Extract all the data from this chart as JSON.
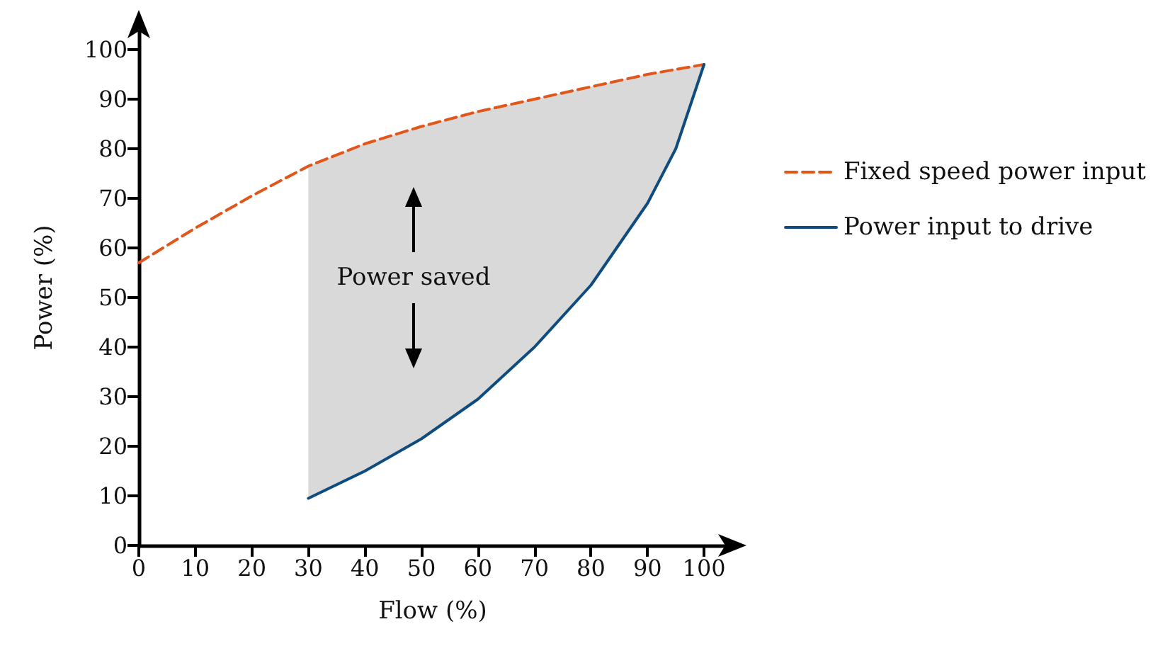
{
  "chart_data": {
    "type": "line",
    "xlabel": "Flow (%)",
    "ylabel": "Power (%)",
    "x": [
      0,
      10,
      20,
      30,
      40,
      50,
      60,
      70,
      80,
      90,
      95,
      100
    ],
    "series": [
      {
        "name": "Fixed speed power input",
        "color": "#e0561b",
        "line_style": "dashed",
        "values": [
          57,
          64,
          70.5,
          76.5,
          81,
          84.5,
          87.5,
          90,
          92.5,
          95,
          96,
          97
        ],
        "lower": [
          null,
          null,
          null,
          9.5,
          15,
          21.5,
          29.5,
          40,
          52.5,
          69,
          80,
          97
        ],
        "upper": [
          null,
          null,
          null,
          76.5,
          81,
          84.5,
          87.5,
          90,
          92.5,
          95,
          96,
          97
        ]
      },
      {
        "name": "Power input to drive",
        "color": "#0e4c80",
        "line_style": "solid",
        "x": [
          30,
          40,
          50,
          60,
          70,
          80,
          90,
          95,
          100
        ],
        "values": [
          9.5,
          15,
          21.5,
          29.5,
          40,
          52.5,
          69,
          80,
          97
        ]
      }
    ],
    "annotations": [
      "Power saved"
    ],
    "xlim": [
      0,
      104
    ],
    "ylim": [
      0,
      104
    ],
    "xticks": [
      0,
      10,
      20,
      30,
      40,
      50,
      60,
      70,
      80,
      90,
      100
    ],
    "yticks": [
      0,
      10,
      20,
      30,
      40,
      50,
      60,
      70,
      80,
      90,
      100
    ],
    "grid": false,
    "legend": "right",
    "marker": "none"
  }
}
